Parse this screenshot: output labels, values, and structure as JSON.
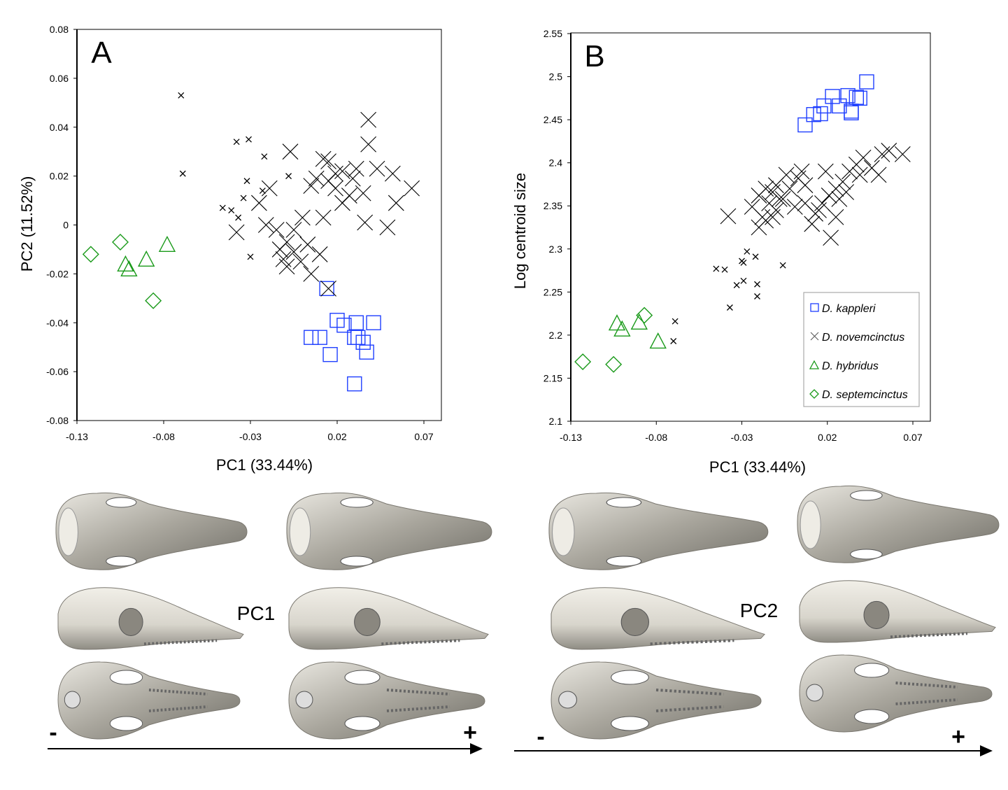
{
  "colors": {
    "kappleri": "#1f3fff",
    "novemcinctus": "#000000",
    "hybridus": "#1a9a1a",
    "septemcinctus": "#1a9a1a",
    "skull": "#c9c6bd"
  },
  "chart_data": [
    {
      "type": "scatter",
      "panel_label": "A",
      "xlabel": "PC1 (33.44%)",
      "ylabel": "PC2 (11.52%)",
      "xlim": [
        -0.13,
        0.07
      ],
      "ylim": [
        -0.08,
        0.08
      ],
      "xticks": [
        "-0.13",
        "-0.08",
        "-0.03",
        "0.02",
        "0.07"
      ],
      "yticks": [
        "0.08",
        "0.06",
        "0.04",
        "0.02",
        "0",
        "-0.02",
        "-0.04",
        "-0.06",
        "-0.08"
      ],
      "grid": false,
      "series": [
        {
          "species": "D. septemcinctus",
          "marker": "diamond",
          "points": [
            [
              -0.122,
              -0.012
            ],
            [
              -0.105,
              -0.007
            ],
            [
              -0.086,
              -0.031
            ]
          ]
        },
        {
          "species": "D. hybridus",
          "marker": "triangle",
          "points": [
            [
              -0.102,
              -0.016
            ],
            [
              -0.1,
              -0.018
            ],
            [
              -0.09,
              -0.014
            ],
            [
              -0.078,
              -0.008
            ]
          ]
        },
        {
          "species": "D. kappleri",
          "marker": "square",
          "points": [
            [
              0.02,
              -0.039
            ],
            [
              0.024,
              -0.041
            ],
            [
              0.031,
              -0.04
            ],
            [
              0.041,
              -0.04
            ],
            [
              0.005,
              -0.046
            ],
            [
              0.01,
              -0.046
            ],
            [
              0.03,
              -0.046
            ],
            [
              0.032,
              -0.046
            ],
            [
              0.035,
              -0.048
            ],
            [
              0.037,
              -0.052
            ],
            [
              0.016,
              -0.053
            ],
            [
              0.03,
              -0.065
            ],
            [
              0.014,
              -0.026
            ]
          ]
        },
        {
          "species": "D. novemcinctus",
          "marker": "cross-small",
          "points": [
            [
              -0.07,
              0.053
            ],
            [
              -0.069,
              0.021
            ],
            [
              -0.038,
              0.034
            ],
            [
              -0.031,
              0.035
            ],
            [
              -0.022,
              0.028
            ],
            [
              -0.008,
              0.02
            ],
            [
              -0.032,
              0.018
            ],
            [
              -0.034,
              0.011
            ],
            [
              -0.046,
              0.007
            ],
            [
              -0.041,
              0.006
            ],
            [
              -0.037,
              0.003
            ],
            [
              -0.03,
              -0.013
            ],
            [
              -0.023,
              0.014
            ]
          ]
        },
        {
          "species": "D. novemcinctus",
          "marker": "cross",
          "points": [
            [
              0.038,
              0.043
            ],
            [
              0.038,
              0.033
            ],
            [
              -0.007,
              0.03
            ],
            [
              0.012,
              0.027
            ],
            [
              0.015,
              0.026
            ],
            [
              0.008,
              0.019
            ],
            [
              0.023,
              0.022
            ],
            [
              0.031,
              0.023
            ],
            [
              0.043,
              0.023
            ],
            [
              0.052,
              0.021
            ],
            [
              0.063,
              0.015
            ],
            [
              0.054,
              0.009
            ],
            [
              0.049,
              -0.001
            ],
            [
              0.036,
              0.001
            ],
            [
              0.027,
              0.012
            ],
            [
              0.019,
              0.015
            ],
            [
              0.015,
              0.018
            ],
            [
              0.023,
              0.009
            ],
            [
              0.005,
              0.016
            ],
            [
              -0.019,
              0.015
            ],
            [
              -0.025,
              0.009
            ],
            [
              -0.038,
              -0.003
            ],
            [
              -0.021,
              0.0
            ],
            [
              -0.015,
              -0.002
            ],
            [
              -0.009,
              -0.007
            ],
            [
              -0.005,
              -0.002
            ],
            [
              0.0,
              0.003
            ],
            [
              0.012,
              0.003
            ],
            [
              0.003,
              -0.008
            ],
            [
              -0.011,
              -0.014
            ],
            [
              -0.009,
              -0.017
            ],
            [
              0.005,
              -0.02
            ],
            [
              0.015,
              -0.026
            ],
            [
              -0.005,
              -0.011
            ],
            [
              -0.013,
              -0.01
            ],
            [
              0.01,
              -0.012
            ],
            [
              -0.001,
              -0.015
            ],
            [
              0.029,
              0.019
            ],
            [
              0.035,
              0.013
            ],
            [
              0.019,
              0.021
            ]
          ]
        }
      ]
    },
    {
      "type": "scatter",
      "panel_label": "B",
      "xlabel": "PC1 (33.44%)",
      "ylabel": "Log centroid size",
      "xlim": [
        -0.13,
        0.07
      ],
      "ylim": [
        2.1,
        2.55
      ],
      "xticks": [
        "-0.13",
        "-0.08",
        "-0.03",
        "0.02",
        "0.07"
      ],
      "yticks": [
        "2.55",
        "2.5",
        "2.45",
        "2.4",
        "2.35",
        "2.3",
        "2.25",
        "2.2",
        "2.15",
        "2.1"
      ],
      "grid": false,
      "legend_position": "bottom-right",
      "legend": [
        {
          "label": "D. kappleri",
          "marker": "square"
        },
        {
          "label": "D. novemcinctus",
          "marker": "cross"
        },
        {
          "label": "D. hybridus",
          "marker": "triangle"
        },
        {
          "label": "D. septemcinctus",
          "marker": "diamond"
        }
      ],
      "series": [
        {
          "species": "D. septemcinctus",
          "marker": "diamond",
          "points": [
            [
              -0.123,
              2.169
            ],
            [
              -0.105,
              2.166
            ],
            [
              -0.087,
              2.223
            ]
          ]
        },
        {
          "species": "D. hybridus",
          "marker": "triangle",
          "points": [
            [
              -0.103,
              2.214
            ],
            [
              -0.1,
              2.207
            ],
            [
              -0.09,
              2.215
            ],
            [
              -0.079,
              2.193
            ]
          ]
        },
        {
          "species": "D. kappleri",
          "marker": "square",
          "points": [
            [
              0.007,
              2.444
            ],
            [
              0.012,
              2.456
            ],
            [
              0.016,
              2.457
            ],
            [
              0.018,
              2.466
            ],
            [
              0.023,
              2.477
            ],
            [
              0.027,
              2.466
            ],
            [
              0.032,
              2.478
            ],
            [
              0.037,
              2.476
            ],
            [
              0.034,
              2.46
            ],
            [
              0.034,
              2.458
            ],
            [
              0.043,
              2.494
            ],
            [
              0.039,
              2.475
            ]
          ]
        },
        {
          "species": "D. novemcinctus",
          "marker": "cross-small",
          "points": [
            [
              -0.045,
              2.277
            ],
            [
              -0.04,
              2.276
            ],
            [
              -0.027,
              2.297
            ],
            [
              -0.022,
              2.291
            ],
            [
              -0.03,
              2.286
            ],
            [
              -0.029,
              2.284
            ],
            [
              -0.006,
              2.281
            ],
            [
              -0.033,
              2.258
            ],
            [
              -0.029,
              2.263
            ],
            [
              -0.021,
              2.259
            ],
            [
              -0.021,
              2.245
            ],
            [
              -0.037,
              2.232
            ],
            [
              -0.069,
              2.216
            ],
            [
              -0.07,
              2.193
            ]
          ]
        },
        {
          "species": "D. novemcinctus",
          "marker": "cross",
          "points": [
            [
              -0.038,
              2.338
            ],
            [
              -0.024,
              2.349
            ],
            [
              -0.02,
              2.362
            ],
            [
              -0.016,
              2.37
            ],
            [
              -0.012,
              2.366
            ],
            [
              -0.01,
              2.374
            ],
            [
              -0.014,
              2.353
            ],
            [
              -0.018,
              2.337
            ],
            [
              -0.02,
              2.325
            ],
            [
              -0.016,
              2.333
            ],
            [
              -0.01,
              2.345
            ],
            [
              -0.006,
              2.358
            ],
            [
              -0.002,
              2.37
            ],
            [
              0.003,
              2.382
            ],
            [
              0.005,
              2.39
            ],
            [
              0.007,
              2.374
            ],
            [
              -0.004,
              2.386
            ],
            [
              -0.008,
              2.358
            ],
            [
              0.011,
              2.329
            ],
            [
              0.013,
              2.341
            ],
            [
              0.017,
              2.353
            ],
            [
              0.021,
              2.362
            ],
            [
              0.025,
              2.37
            ],
            [
              0.029,
              2.378
            ],
            [
              0.033,
              2.39
            ],
            [
              0.037,
              2.398
            ],
            [
              0.041,
              2.406
            ],
            [
              0.046,
              2.394
            ],
            [
              0.05,
              2.386
            ],
            [
              0.052,
              2.41
            ],
            [
              0.056,
              2.414
            ],
            [
              0.064,
              2.41
            ],
            [
              0.022,
              2.313
            ],
            [
              0.015,
              2.345
            ],
            [
              0.027,
              2.358
            ],
            [
              0.031,
              2.366
            ],
            [
              0.039,
              2.386
            ],
            [
              0.019,
              2.39
            ],
            [
              0.007,
              2.353
            ],
            [
              0.001,
              2.349
            ],
            [
              -0.012,
              2.337
            ],
            [
              0.025,
              2.337
            ]
          ]
        }
      ]
    }
  ],
  "skull_panels": [
    {
      "label": "PC1",
      "minus": "-",
      "plus": "+"
    },
    {
      "label": "PC2",
      "minus": "-",
      "plus": "+"
    }
  ]
}
